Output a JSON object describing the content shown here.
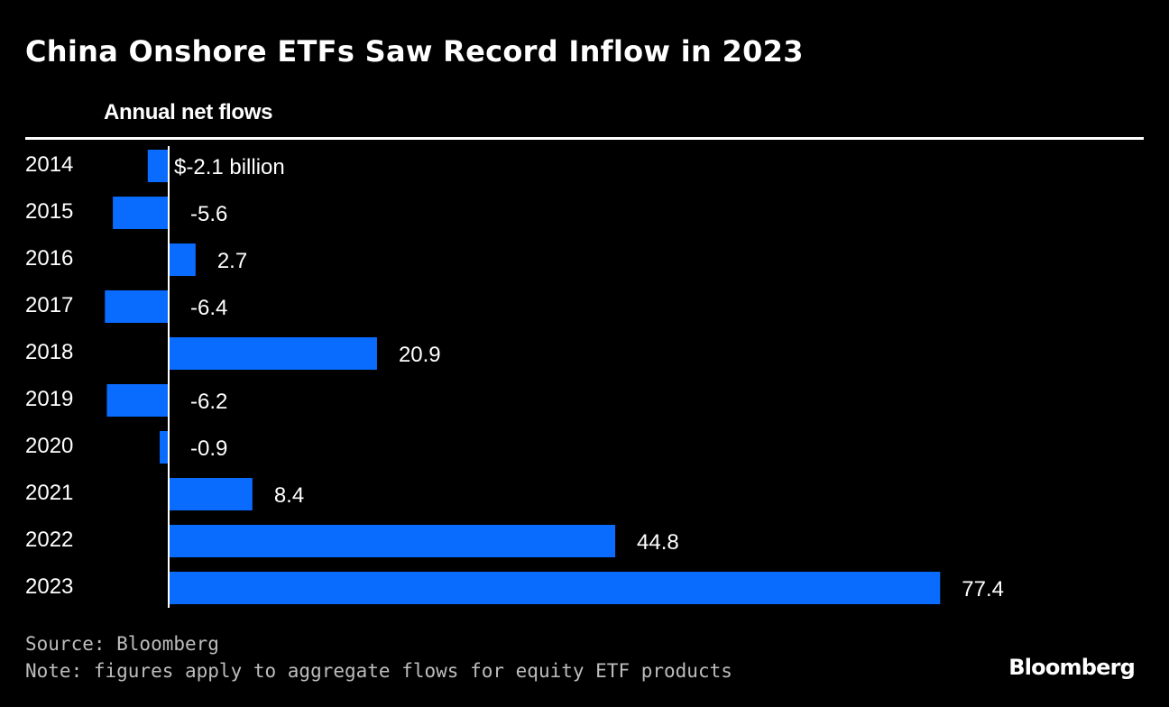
{
  "title": "China Onshore ETFs Saw Record Inflow in 2023",
  "subtitle": "Annual net flows",
  "colors": {
    "bar": "#0a6cff",
    "background": "#000000",
    "text": "#ffffff",
    "axis": "#ffffff"
  },
  "chart_data": {
    "type": "bar",
    "orientation": "horizontal",
    "title": "China Onshore ETFs Saw Record Inflow in 2023",
    "subtitle": "Annual net flows",
    "categories": [
      "2014",
      "2015",
      "2016",
      "2017",
      "2018",
      "2019",
      "2020",
      "2021",
      "2022",
      "2023"
    ],
    "values": [
      -2.1,
      -5.6,
      2.7,
      -6.4,
      20.9,
      -6.2,
      -0.9,
      8.4,
      44.8,
      77.4
    ],
    "labels": [
      "$-2.1 billion",
      "-5.6",
      "2.7",
      "-6.4",
      "20.9",
      "-6.2",
      "-0.9",
      "8.4",
      "44.8",
      "77.4"
    ],
    "unit": "billion USD",
    "xlim": [
      -6.4,
      77.4
    ],
    "grid": false,
    "legend": "none"
  },
  "footer": {
    "source": "Source: Bloomberg",
    "note": "Note: figures apply to aggregate flows for equity ETF products",
    "logo": "Bloomberg"
  }
}
